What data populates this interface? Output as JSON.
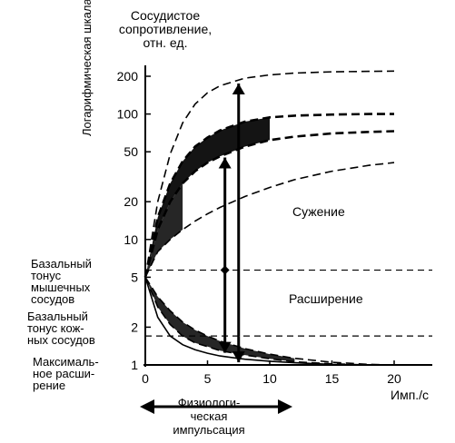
{
  "chart_data": {
    "type": "line",
    "title": "Сосудистое\nсопротивление,\nотн. ед.",
    "ylabel": "Логарифмическая шкала",
    "xlabel": "Имп./с",
    "x_range": [
      0,
      20
    ],
    "y_range": [
      1,
      250
    ],
    "y_scale": "log",
    "x_ticks": [
      0,
      5,
      10,
      15,
      20
    ],
    "x_tick_labels": [
      "0",
      "5",
      "10",
      "15",
      "20"
    ],
    "y_ticks": [
      1,
      2,
      5,
      10,
      20,
      50,
      100,
      200
    ],
    "y_tick_labels": [
      "1",
      "2",
      "5",
      "10",
      "20",
      "50",
      "100",
      "200"
    ],
    "regions": {
      "constriction": "Сужение",
      "dilation": "Расширение"
    },
    "reference_levels": [
      {
        "label": "Базальный\nтонус\nмышечных\nсосудов",
        "y": 5.7
      },
      {
        "label": "Базальный\nтонус кож-\nных сосудов",
        "y": 1.7
      },
      {
        "label": "Максималь-\nное расши-\nрение",
        "y": 1
      }
    ],
    "physiological_range_label": "Физиологи-\nческая\nимпульсация",
    "constriction_curves": [
      {
        "x": [
          0,
          1,
          2,
          3,
          4,
          5,
          6,
          8,
          10,
          12,
          15,
          18,
          20
        ],
        "y": [
          5,
          20,
          48,
          85,
          120,
          148,
          168,
          193,
          205,
          212,
          217,
          219,
          220
        ]
      },
      {
        "x": [
          0,
          1,
          2,
          3,
          4,
          5,
          6,
          8,
          10,
          12,
          15,
          18,
          20
        ],
        "y": [
          5,
          15,
          28,
          42,
          55,
          65,
          74,
          87,
          94,
          97,
          99,
          100,
          100
        ]
      },
      {
        "x": [
          0,
          1,
          2,
          3,
          4,
          5,
          6,
          8,
          10,
          12,
          15,
          18,
          20
        ],
        "y": [
          5,
          12,
          20,
          28,
          35,
          41,
          46,
          55,
          62,
          66,
          70,
          72,
          73
        ]
      },
      {
        "x": [
          0,
          1,
          2,
          3,
          4,
          5,
          6,
          8,
          10,
          12,
          15,
          18,
          20
        ],
        "y": [
          5,
          8,
          10,
          12,
          14,
          16,
          18,
          22,
          26,
          30,
          35,
          39,
          41
        ]
      }
    ],
    "dilation_curves": [
      {
        "x": [
          0,
          1,
          2,
          3,
          4,
          5,
          6,
          8,
          10,
          12,
          15,
          18,
          20
        ],
        "y": [
          5,
          2.9,
          2.1,
          1.7,
          1.5,
          1.4,
          1.3,
          1.2,
          1.12,
          1.06,
          1.02,
          1.0,
          1.0
        ]
      },
      {
        "x": [
          0,
          1,
          2,
          3,
          4,
          5,
          6,
          8,
          10,
          12,
          15,
          18,
          20
        ],
        "y": [
          5,
          3.5,
          2.7,
          2.2,
          1.9,
          1.7,
          1.55,
          1.35,
          1.22,
          1.13,
          1.05,
          1.01,
          1.0
        ]
      },
      {
        "x": [
          0,
          1,
          2,
          3,
          4,
          5,
          6,
          8,
          10,
          12,
          15,
          18,
          20
        ],
        "y": [
          5,
          2.4,
          1.7,
          1.45,
          1.32,
          1.24,
          1.18,
          1.11,
          1.07,
          1.04,
          1.01,
          1.0,
          1.0
        ]
      }
    ],
    "markers": [
      {
        "x": 6.4,
        "y1": 5.7,
        "y2": 45,
        "direction": "up"
      },
      {
        "x": 6.4,
        "y1": 5.7,
        "y2": 1.25,
        "direction": "down"
      },
      {
        "x": 7.5,
        "y1": 1.7,
        "y2": 175,
        "direction": "up"
      },
      {
        "x": 7.5,
        "y1": 1.7,
        "y2": 1.05,
        "direction": "down"
      }
    ],
    "grid": false,
    "legend": "none"
  }
}
